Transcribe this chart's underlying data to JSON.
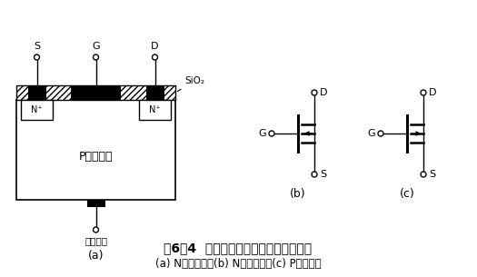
{
  "title": "图6－4  绝缘栅型场效应管的结构与符号",
  "subtitle": "(a) N沟道结构；(b) N沟道符号；(c) P沟道符号",
  "background_color": "#ffffff",
  "text_color": "#000000",
  "line_color": "#000000",
  "label_a": "(a)",
  "label_b": "(b)",
  "label_c": "(c)",
  "sio2_label": "SiO₂",
  "substrate_label": "P型硅衬底",
  "substrate_lead": "衬底引线",
  "n_plus": "N⁺",
  "S_label": "S",
  "G_label": "G",
  "D_label": "D"
}
